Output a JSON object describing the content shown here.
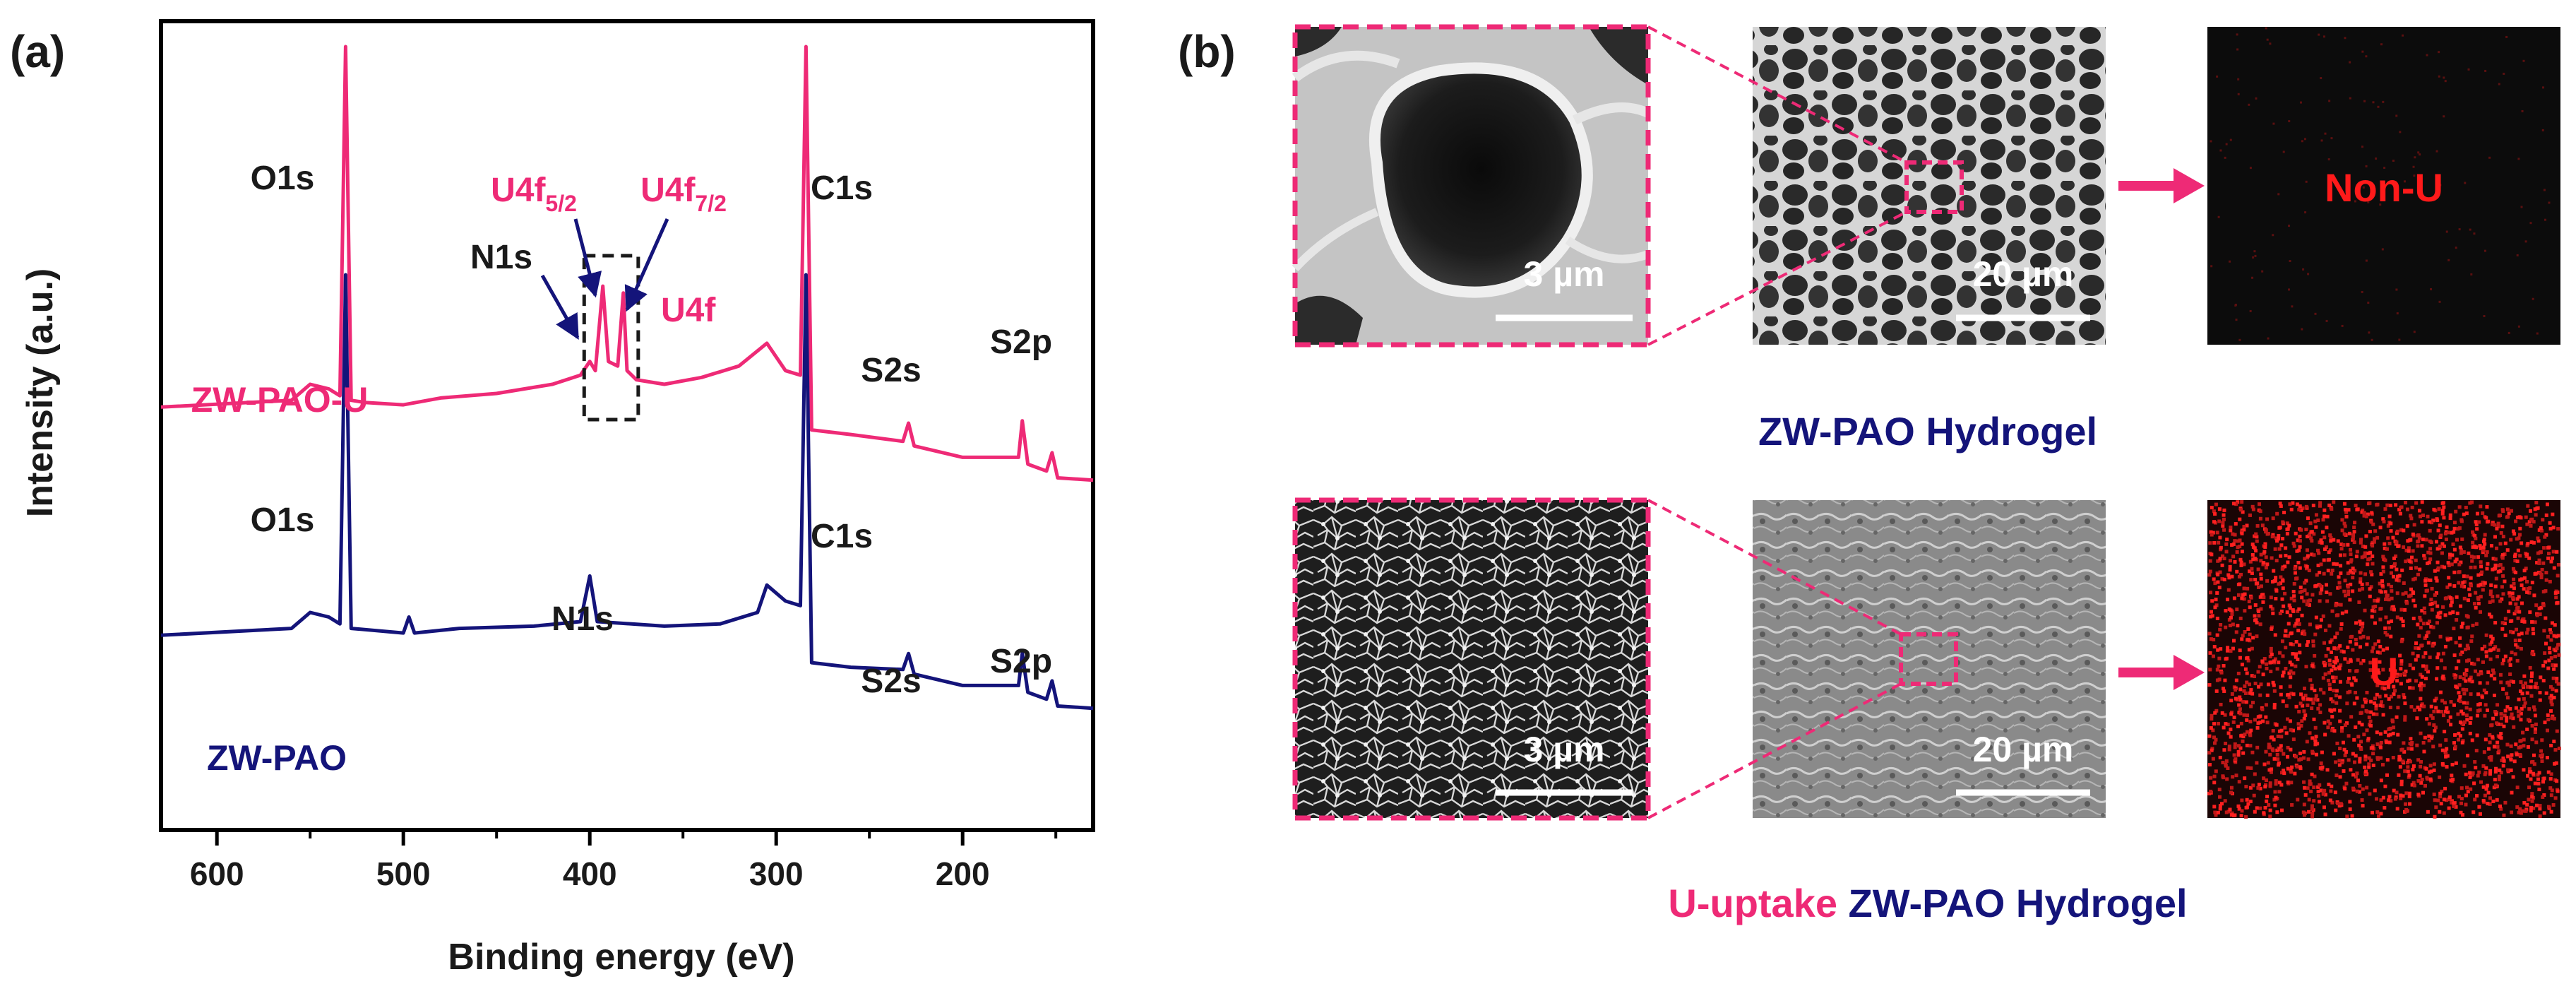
{
  "panel_a": {
    "label": "(a)"
  },
  "panel_b": {
    "label": "(b)",
    "rows": [
      {
        "zoom_scale": "3 µm",
        "overview_scale": "20 µm",
        "map_label": "Non-U",
        "caption": [
          {
            "text": "ZW-PAO Hydrogel",
            "color": "#14147a"
          }
        ]
      },
      {
        "zoom_scale": "3 µm",
        "overview_scale": "20 µm",
        "map_label": "U",
        "caption": [
          {
            "text": "U-uptake",
            "color": "#ee2a76"
          },
          {
            "text": "ZW-PAO Hydrogel",
            "color": "#14147a"
          }
        ]
      }
    ]
  },
  "colors": {
    "pink": "#ee2a76",
    "navy": "#14147a",
    "red": "#ff1a1a",
    "dark": "#1a1a1a"
  },
  "chart_data": {
    "type": "line",
    "xlabel": "Binding energy (eV)",
    "ylabel": "Intensity (a.u.)",
    "xlim": [
      630,
      130
    ],
    "x_reversed": true,
    "xticks": [
      600,
      500,
      400,
      300,
      200
    ],
    "y_ticks_shown": false,
    "series": [
      {
        "name": "ZW-PAO-U",
        "color": "#ee2a76",
        "offset": 1.0,
        "points": [
          [
            630,
            0.42
          ],
          [
            560,
            0.45
          ],
          [
            550,
            0.52
          ],
          [
            540,
            0.5
          ],
          [
            534,
            0.47
          ],
          [
            531,
            2.0
          ],
          [
            528,
            0.45
          ],
          [
            520,
            0.44
          ],
          [
            500,
            0.43
          ],
          [
            480,
            0.46
          ],
          [
            450,
            0.48
          ],
          [
            420,
            0.52
          ],
          [
            405,
            0.56
          ],
          [
            400,
            0.62
          ],
          [
            397,
            0.58
          ],
          [
            393,
            0.95
          ],
          [
            390,
            0.62
          ],
          [
            385,
            0.6
          ],
          [
            382,
            0.92
          ],
          [
            380,
            0.58
          ],
          [
            375,
            0.54
          ],
          [
            360,
            0.52
          ],
          [
            340,
            0.55
          ],
          [
            320,
            0.6
          ],
          [
            305,
            0.7
          ],
          [
            295,
            0.58
          ],
          [
            287,
            0.56
          ],
          [
            284,
            2.0
          ],
          [
            281,
            0.32
          ],
          [
            260,
            0.3
          ],
          [
            232,
            0.27
          ],
          [
            229,
            0.35
          ],
          [
            226,
            0.25
          ],
          [
            200,
            0.2
          ],
          [
            170,
            0.2
          ],
          [
            168,
            0.36
          ],
          [
            165,
            0.17
          ],
          [
            155,
            0.14
          ],
          [
            152,
            0.22
          ],
          [
            149,
            0.11
          ],
          [
            130,
            0.1
          ]
        ]
      },
      {
        "name": "ZW-PAO",
        "color": "#14147a",
        "offset": 0.0,
        "points": [
          [
            630,
            0.42
          ],
          [
            560,
            0.45
          ],
          [
            550,
            0.52
          ],
          [
            540,
            0.5
          ],
          [
            534,
            0.47
          ],
          [
            531,
            2.0
          ],
          [
            528,
            0.45
          ],
          [
            500,
            0.43
          ],
          [
            497,
            0.5
          ],
          [
            494,
            0.43
          ],
          [
            470,
            0.45
          ],
          [
            430,
            0.46
          ],
          [
            405,
            0.48
          ],
          [
            400,
            0.68
          ],
          [
            396,
            0.48
          ],
          [
            360,
            0.46
          ],
          [
            330,
            0.47
          ],
          [
            310,
            0.52
          ],
          [
            305,
            0.64
          ],
          [
            295,
            0.57
          ],
          [
            287,
            0.55
          ],
          [
            284,
            2.0
          ],
          [
            281,
            0.3
          ],
          [
            260,
            0.28
          ],
          [
            232,
            0.27
          ],
          [
            229,
            0.34
          ],
          [
            226,
            0.25
          ],
          [
            200,
            0.2
          ],
          [
            170,
            0.2
          ],
          [
            168,
            0.34
          ],
          [
            165,
            0.17
          ],
          [
            155,
            0.14
          ],
          [
            152,
            0.22
          ],
          [
            149,
            0.11
          ],
          [
            130,
            0.1
          ]
        ]
      }
    ],
    "annotations": [
      {
        "text": "O1s",
        "series": "ZW-PAO-U",
        "color": "#1a1a1a"
      },
      {
        "text": "C1s",
        "series": "ZW-PAO-U",
        "color": "#1a1a1a"
      },
      {
        "text": "N1s",
        "series": "ZW-PAO-U",
        "color": "#1a1a1a"
      },
      {
        "text": "U4f5/2",
        "base": "U4f",
        "sub": "5/2",
        "series": "ZW-PAO-U",
        "color": "#ee2a76"
      },
      {
        "text": "U4f7/2",
        "base": "U4f",
        "sub": "7/2",
        "series": "ZW-PAO-U",
        "color": "#ee2a76"
      },
      {
        "text": "U4f",
        "series": "ZW-PAO-U",
        "color": "#ee2a76"
      },
      {
        "text": "S2s",
        "series": "ZW-PAO-U",
        "color": "#1a1a1a"
      },
      {
        "text": "S2p",
        "series": "ZW-PAO-U",
        "color": "#1a1a1a"
      },
      {
        "text": "ZW-PAO-U",
        "series": "ZW-PAO-U",
        "color": "#ee2a76"
      },
      {
        "text": "O1s",
        "series": "ZW-PAO",
        "color": "#1a1a1a"
      },
      {
        "text": "C1s",
        "series": "ZW-PAO",
        "color": "#1a1a1a"
      },
      {
        "text": "N1s",
        "series": "ZW-PAO",
        "color": "#1a1a1a"
      },
      {
        "text": "S2s",
        "series": "ZW-PAO",
        "color": "#1a1a1a"
      },
      {
        "text": "S2p",
        "series": "ZW-PAO",
        "color": "#1a1a1a"
      },
      {
        "text": "ZW-PAO",
        "series": "ZW-PAO",
        "color": "#14147a"
      }
    ]
  }
}
